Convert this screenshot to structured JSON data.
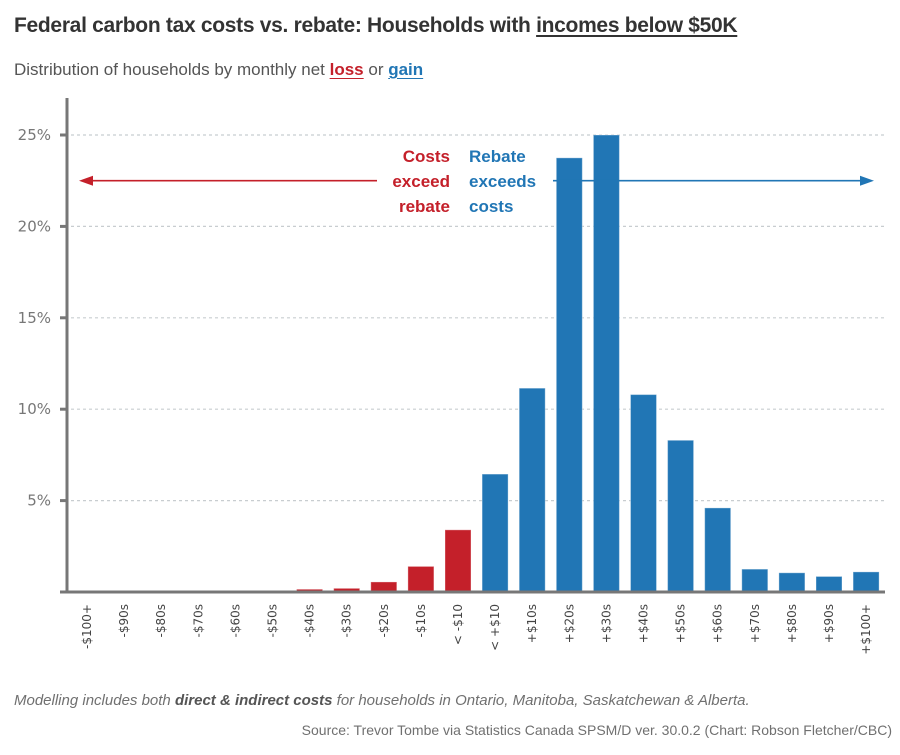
{
  "header": {
    "title_prefix": "Federal carbon tax costs vs. rebate: Households with ",
    "title_underlined": "incomes below $50K",
    "subtitle_prefix": "Distribution of households by monthly net ",
    "subtitle_loss": "loss",
    "subtitle_or": " or ",
    "subtitle_gain": "gain"
  },
  "footer": {
    "note_prefix": "Modelling includes both ",
    "note_bold": "direct & indirect costs",
    "note_suffix": " for households in Ontario, Manitoba, Saskatchewan & Alberta.",
    "source": "Source: Trevor Tombe via Statistics Canada SPSM/D ver. 30.0.2 (Chart: Robson Fletcher/CBC)"
  },
  "colors": {
    "loss": "#c4202a",
    "gain": "#2176b5",
    "axis": "#777777",
    "grid": "#c8cdd0"
  },
  "annotations": {
    "loss_lines": [
      "Costs",
      "exceed",
      "rebate"
    ],
    "gain_lines": [
      "Rebate",
      "exceeds",
      "costs"
    ],
    "arrow_level": 22.5
  },
  "chart_data": {
    "type": "bar",
    "title": "Federal carbon tax costs vs. rebate: Households with incomes below $50K",
    "subtitle": "Distribution of households by monthly net loss or gain",
    "xlabel": "",
    "ylabel": "",
    "ylim": [
      0,
      27
    ],
    "yticks": [
      5,
      10,
      15,
      20,
      25
    ],
    "ytick_labels": [
      "5%",
      "10%",
      "15%",
      "20%",
      "25%"
    ],
    "grid": true,
    "legend": "none",
    "categories": [
      "-$100+",
      "-$90s",
      "-$80s",
      "-$70s",
      "-$60s",
      "-$50s",
      "-$40s",
      "-$30s",
      "-$20s",
      "-$10s",
      "< -$10",
      "< +$10",
      "+$10s",
      "+$20s",
      "+$30s",
      "+$40s",
      "+$50s",
      "+$60s",
      "+$70s",
      "+$80s",
      "+$90s",
      "+$100+"
    ],
    "values": [
      0,
      0,
      0,
      0,
      0,
      0,
      0.15,
      0.2,
      0.55,
      1.4,
      3.4,
      6.45,
      11.15,
      23.75,
      25.0,
      10.8,
      8.3,
      4.6,
      1.25,
      1.05,
      0.85,
      1.1
    ],
    "groups": [
      "loss",
      "loss",
      "loss",
      "loss",
      "loss",
      "loss",
      "loss",
      "loss",
      "loss",
      "loss",
      "loss",
      "gain",
      "gain",
      "gain",
      "gain",
      "gain",
      "gain",
      "gain",
      "gain",
      "gain",
      "gain",
      "gain"
    ],
    "unit": "%"
  }
}
